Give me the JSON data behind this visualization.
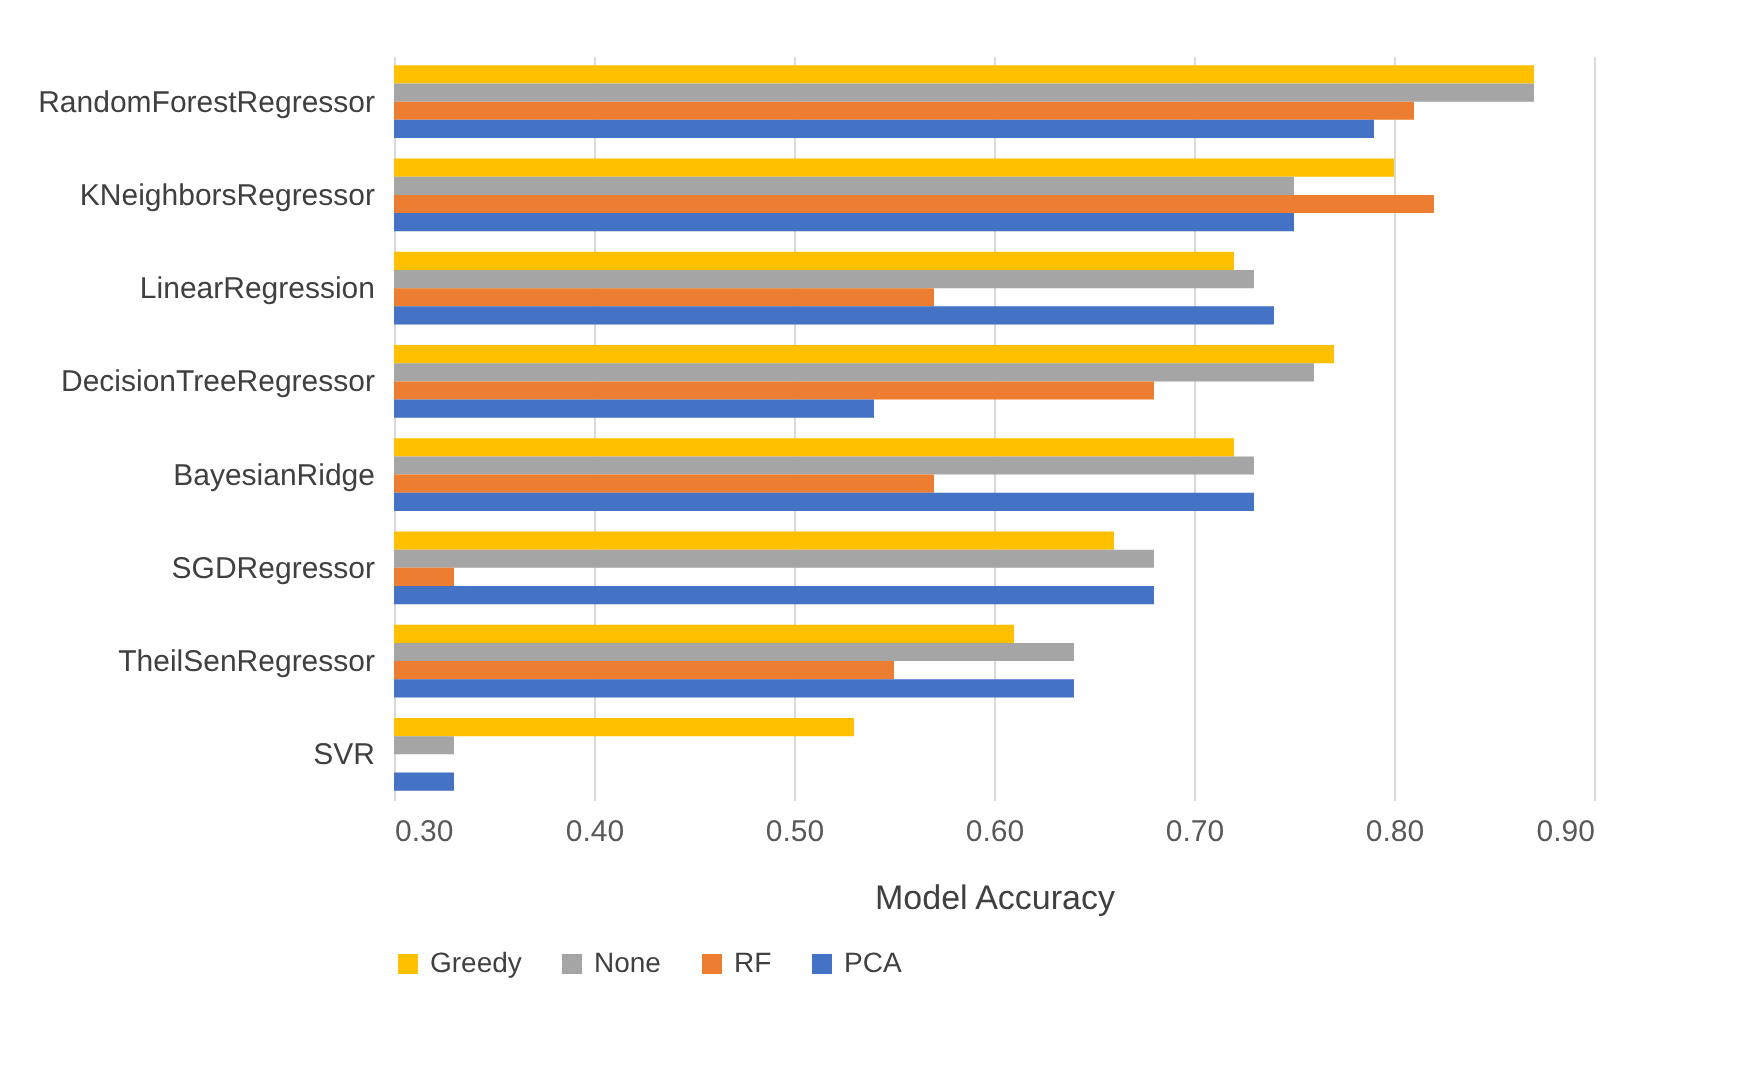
{
  "chart_data": {
    "type": "bar",
    "orientation": "horizontal",
    "xlabel": "Model Accuracy",
    "categories": [
      "RandomForestRegressor",
      "KNeighborsRegressor",
      "LinearRegression",
      "DecisionTreeRegressor",
      "BayesianRidge",
      "SGDRegressor",
      "TheilSenRegressor",
      "SVR"
    ],
    "series": [
      {
        "name": "Greedy",
        "color": "#ffc000",
        "values": [
          0.87,
          0.8,
          0.72,
          0.77,
          0.72,
          0.66,
          0.61,
          0.53
        ]
      },
      {
        "name": "None",
        "color": "#a5a5a5",
        "values": [
          0.87,
          0.75,
          0.73,
          0.76,
          0.73,
          0.68,
          0.64,
          0.33
        ]
      },
      {
        "name": "RF",
        "color": "#ed7d31",
        "values": [
          0.81,
          0.82,
          0.57,
          0.68,
          0.57,
          0.33,
          0.55,
          0.3
        ]
      },
      {
        "name": "PCA",
        "color": "#4472c4",
        "values": [
          0.79,
          0.75,
          0.74,
          0.54,
          0.73,
          0.68,
          0.64,
          0.33
        ]
      }
    ],
    "xlim": [
      0.3,
      0.9
    ],
    "xticks": [
      {
        "value": 0.3,
        "label": "0.30"
      },
      {
        "value": 0.4,
        "label": "0.40"
      },
      {
        "value": 0.5,
        "label": "0.50"
      },
      {
        "value": 0.6,
        "label": "0.60"
      },
      {
        "value": 0.7,
        "label": "0.70"
      },
      {
        "value": 0.8,
        "label": "0.80"
      },
      {
        "value": 0.9,
        "label": "0.90"
      }
    ],
    "grid": "x",
    "legend": "bottom"
  }
}
